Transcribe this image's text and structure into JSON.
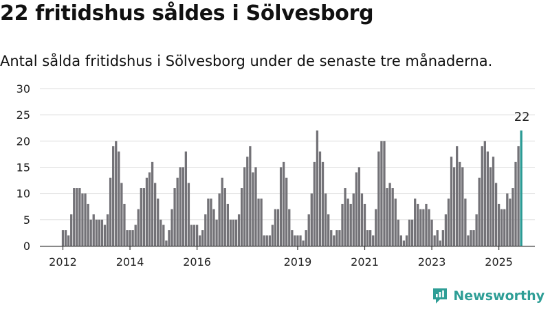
{
  "title": "22 fritidshus såldes i Sölvesborg",
  "subtitle": "Antal sålda fritidshus i Sölvesborg under de senaste tre månaderna.",
  "brand": {
    "name": "Newsworthy",
    "icon": "newsworthy-logo-icon"
  },
  "colors": {
    "bar": "#737277",
    "highlight": "#2a9a94",
    "grid": "#dcdcdc",
    "axis": "#333333",
    "text": "#222222"
  },
  "chart_data": {
    "type": "bar",
    "title": "",
    "xlabel": "",
    "ylabel": "",
    "ylim": [
      0,
      30
    ],
    "yticks": [
      0,
      5,
      10,
      15,
      20,
      25,
      30
    ],
    "xticks": [
      {
        "label": "2012",
        "index": 0
      },
      {
        "label": "2014",
        "index": 24
      },
      {
        "label": "2016",
        "index": 48
      },
      {
        "label": "2019",
        "index": 84
      },
      {
        "label": "2021",
        "index": 108
      },
      {
        "label": "2023",
        "index": 132
      },
      {
        "label": "2025",
        "index": 156
      }
    ],
    "grid": true,
    "start": "2012-01",
    "frequency": "monthly",
    "values": [
      3,
      3,
      2,
      6,
      11,
      11,
      11,
      10,
      10,
      8,
      5,
      6,
      5,
      5,
      5,
      4,
      6,
      13,
      19,
      20,
      18,
      12,
      8,
      3,
      3,
      3,
      4,
      7,
      11,
      11,
      13,
      14,
      16,
      12,
      9,
      5,
      4,
      1,
      3,
      7,
      11,
      13,
      15,
      15,
      18,
      12,
      4,
      4,
      4,
      2,
      3,
      6,
      9,
      9,
      7,
      5,
      10,
      13,
      11,
      8,
      5,
      5,
      5,
      6,
      11,
      15,
      17,
      19,
      14,
      15,
      9,
      9,
      2,
      2,
      2,
      4,
      7,
      7,
      15,
      16,
      13,
      7,
      3,
      2,
      2,
      2,
      1,
      3,
      6,
      10,
      16,
      22,
      18,
      16,
      10,
      6,
      3,
      2,
      3,
      3,
      8,
      11,
      9,
      8,
      10,
      14,
      15,
      10,
      8,
      3,
      3,
      2,
      7,
      18,
      20,
      20,
      11,
      12,
      11,
      9,
      5,
      2,
      1,
      2,
      5,
      5,
      9,
      8,
      7,
      7,
      8,
      7,
      5,
      2,
      3,
      1,
      3,
      6,
      9,
      17,
      15,
      19,
      16,
      15,
      9,
      2,
      3,
      3,
      6,
      13,
      19,
      20,
      18,
      15,
      17,
      12,
      8,
      7,
      7,
      10,
      9,
      11,
      16,
      19,
      22
    ],
    "highlight_last": true,
    "last_label": "22"
  }
}
